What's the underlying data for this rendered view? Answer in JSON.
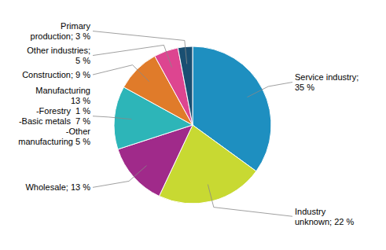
{
  "chart_data": {
    "type": "pie",
    "categories": [
      "Service industry;\n35 %",
      "Industry\nunknown; 22 %",
      "Wholesale; 13 %",
      "Manufacturing\n13 %\n-Forestry  1 %\n-Basic metals  7 %\n-Other\nmanufacturing 5 %",
      "Construction; 9 %",
      "Other industries;\n5 %",
      "Primary\nproduction; 3 %"
    ],
    "values": [
      35,
      22,
      13,
      13,
      9,
      5,
      3
    ],
    "colors": [
      "#1e8fc0",
      "#c8d932",
      "#a02a8a",
      "#2db5b8",
      "#e07b2a",
      "#dd4590",
      "#1a4f72"
    ]
  }
}
